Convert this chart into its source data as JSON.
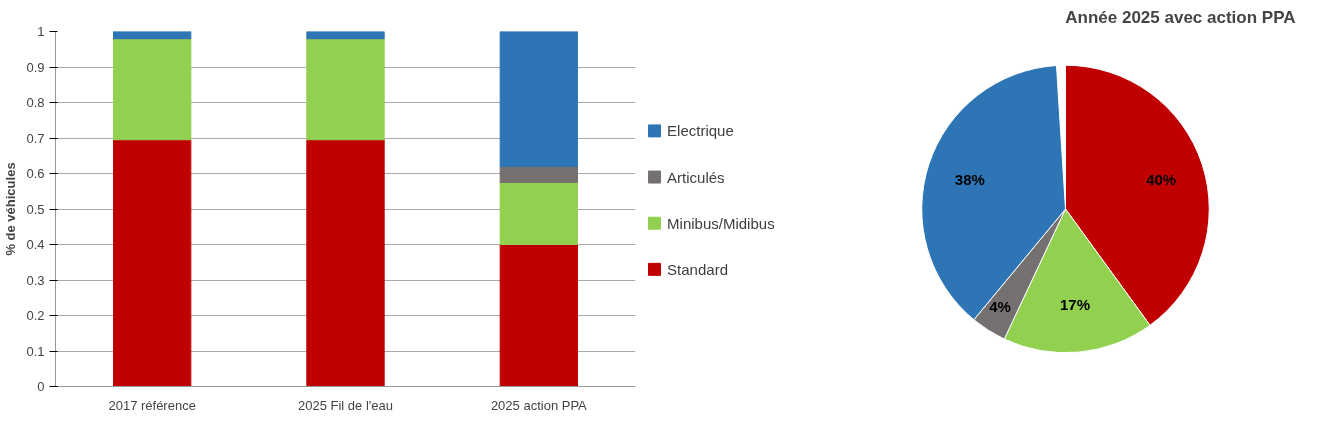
{
  "chart_data": [
    {
      "type": "bar",
      "stacked": true,
      "ylabel": "% de véhicules",
      "categories": [
        "2017 référence",
        "2025 Fil de l'eau",
        "2025 action PPA"
      ],
      "series": [
        {
          "name": "Standard",
          "color": "#c00000",
          "values": [
            0.695,
            0.695,
            0.4
          ]
        },
        {
          "name": "Minibus/Midibus",
          "color": "#92d050",
          "values": [
            0.285,
            0.285,
            0.175
          ]
        },
        {
          "name": "Articulés",
          "color": "#767171",
          "values": [
            0,
            0,
            0.045
          ]
        },
        {
          "name": "Electrique",
          "color": "#2e75b6",
          "values": [
            0.02,
            0.02,
            0.38
          ]
        }
      ],
      "ylim": [
        0,
        1
      ],
      "yticks": [
        0,
        0.1,
        0.2,
        0.3,
        0.4,
        0.5,
        0.6,
        0.7,
        0.8,
        0.9,
        1
      ],
      "grid": "y",
      "legend": "right"
    },
    {
      "type": "pie",
      "title": "Année 2025 avec action PPA",
      "categories": [
        null,
        null,
        null,
        null
      ],
      "values": [
        40,
        17,
        4,
        38
      ],
      "value_labels": [
        "40%",
        "17%",
        "4%",
        "38%"
      ],
      "colors": [
        "#c00000",
        "#92d050",
        "#767171",
        "#2e75b6"
      ]
    }
  ]
}
